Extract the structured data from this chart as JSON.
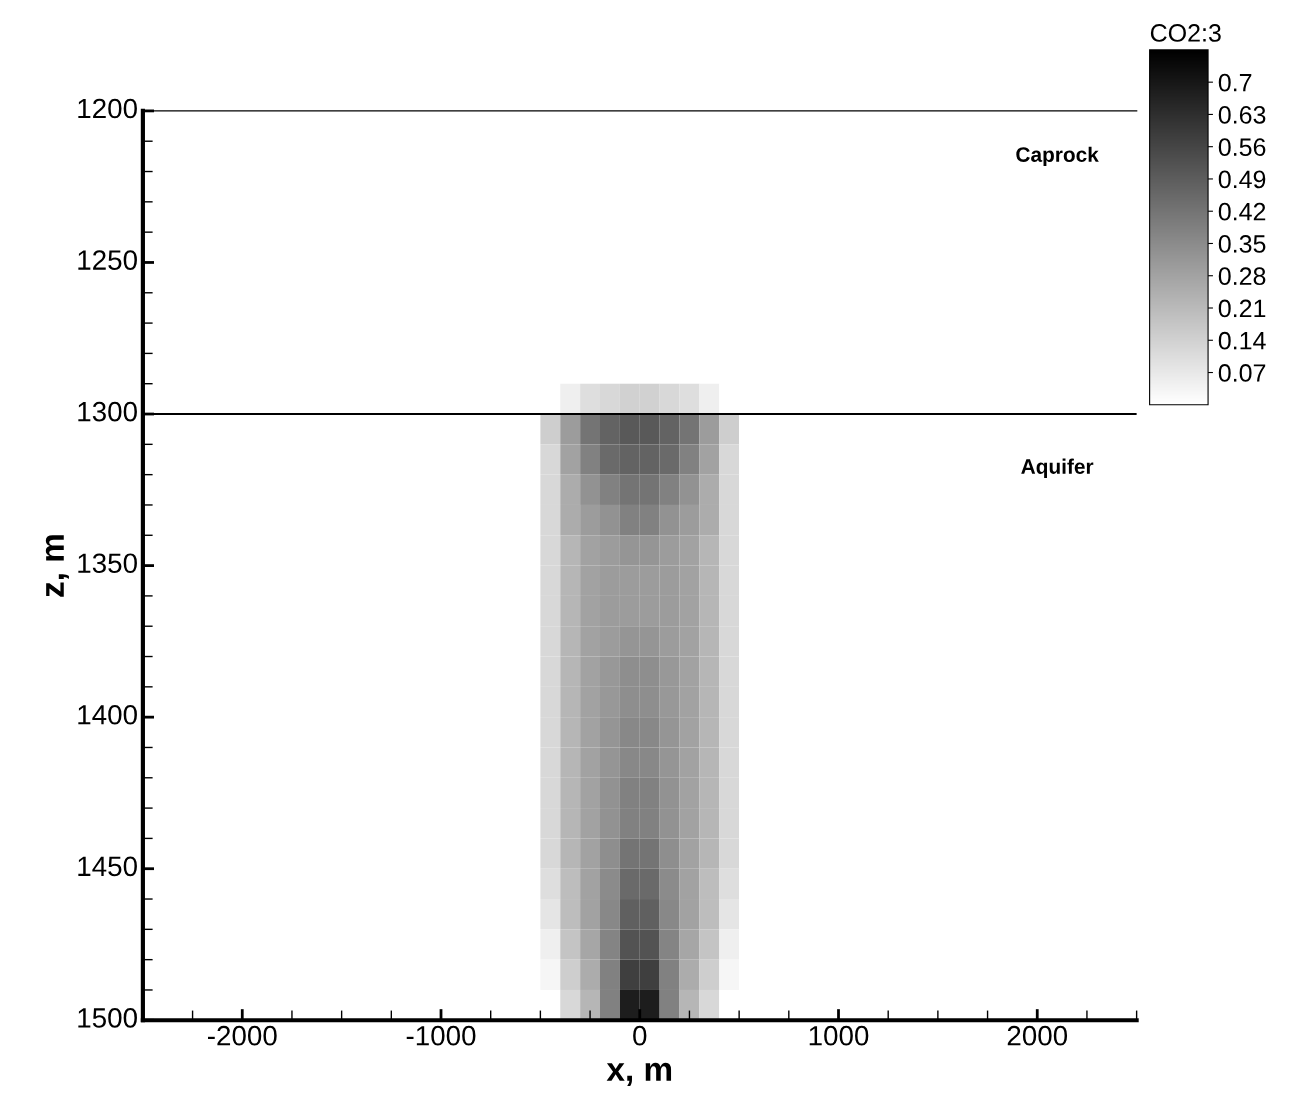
{
  "chart_data": {
    "type": "heatmap",
    "xlabel": "x, m",
    "ylabel": "z, m",
    "clabel": "CO2:3",
    "x": [
      -2450,
      -2350,
      -2250,
      -2150,
      -2050,
      -1950,
      -1850,
      -1750,
      -1650,
      -1550,
      -1450,
      -1350,
      -1250,
      -1150,
      -1050,
      -950,
      -850,
      -750,
      -650,
      -550,
      -450,
      -350,
      -250,
      -150,
      -50,
      50,
      150,
      250,
      350,
      450,
      550,
      650,
      750,
      850,
      950,
      1050,
      1150,
      1250,
      1350,
      1450,
      1550,
      1650,
      1750,
      1850,
      1950,
      2050,
      2150,
      2250,
      2350,
      2450
    ],
    "y": [
      1205,
      1215,
      1225,
      1235,
      1245,
      1255,
      1265,
      1275,
      1285,
      1295,
      1305,
      1315,
      1325,
      1335,
      1345,
      1355,
      1365,
      1375,
      1385,
      1395,
      1405,
      1415,
      1425,
      1435,
      1445,
      1455,
      1465,
      1475,
      1485,
      1495
    ],
    "cells": [
      [
        0,
        0,
        0,
        0,
        0,
        0,
        0,
        0,
        0,
        0,
        0,
        0,
        0,
        0,
        0,
        0,
        0,
        0,
        0,
        0,
        0,
        0,
        0,
        0,
        0,
        0,
        0,
        0,
        0,
        0,
        0,
        0,
        0,
        0,
        0,
        0,
        0,
        0,
        0,
        0,
        0,
        0,
        0,
        0,
        0,
        0,
        0,
        0,
        0,
        0
      ],
      [
        0,
        0,
        0,
        0,
        0,
        0,
        0,
        0,
        0,
        0,
        0,
        0,
        0,
        0,
        0,
        0,
        0,
        0,
        0,
        0,
        0,
        0,
        0,
        0,
        0,
        0,
        0,
        0,
        0,
        0,
        0,
        0,
        0,
        0,
        0,
        0,
        0,
        0,
        0,
        0,
        0,
        0,
        0,
        0,
        0,
        0,
        0,
        0,
        0,
        0
      ],
      [
        0,
        0,
        0,
        0,
        0,
        0,
        0,
        0,
        0,
        0,
        0,
        0,
        0,
        0,
        0,
        0,
        0,
        0,
        0,
        0,
        0,
        0,
        0,
        0,
        0,
        0,
        0,
        0,
        0,
        0,
        0,
        0,
        0,
        0,
        0,
        0,
        0,
        0,
        0,
        0,
        0,
        0,
        0,
        0,
        0,
        0,
        0,
        0,
        0,
        0
      ],
      [
        0,
        0,
        0,
        0,
        0,
        0,
        0,
        0,
        0,
        0,
        0,
        0,
        0,
        0,
        0,
        0,
        0,
        0,
        0,
        0,
        0,
        0,
        0,
        0,
        0,
        0,
        0,
        0,
        0,
        0,
        0,
        0,
        0,
        0,
        0,
        0,
        0,
        0,
        0,
        0,
        0,
        0,
        0,
        0,
        0,
        0,
        0,
        0,
        0,
        0
      ],
      [
        0,
        0,
        0,
        0,
        0,
        0,
        0,
        0,
        0,
        0,
        0,
        0,
        0,
        0,
        0,
        0,
        0,
        0,
        0,
        0,
        0,
        0,
        0,
        0,
        0,
        0,
        0,
        0,
        0,
        0,
        0,
        0,
        0,
        0,
        0,
        0,
        0,
        0,
        0,
        0,
        0,
        0,
        0,
        0,
        0,
        0,
        0,
        0,
        0,
        0
      ],
      [
        0,
        0,
        0,
        0,
        0,
        0,
        0,
        0,
        0,
        0,
        0,
        0,
        0,
        0,
        0,
        0,
        0,
        0,
        0,
        0,
        0,
        0,
        0,
        0,
        0,
        0,
        0,
        0,
        0,
        0,
        0,
        0,
        0,
        0,
        0,
        0,
        0,
        0,
        0,
        0,
        0,
        0,
        0,
        0,
        0,
        0,
        0,
        0,
        0,
        0
      ],
      [
        0,
        0,
        0,
        0,
        0,
        0,
        0,
        0,
        0,
        0,
        0,
        0,
        0,
        0,
        0,
        0,
        0,
        0,
        0,
        0,
        0,
        0,
        0,
        0,
        0,
        0,
        0,
        0,
        0,
        0,
        0,
        0,
        0,
        0,
        0,
        0,
        0,
        0,
        0,
        0,
        0,
        0,
        0,
        0,
        0,
        0,
        0,
        0,
        0,
        0
      ],
      [
        0,
        0,
        0,
        0,
        0,
        0,
        0,
        0,
        0,
        0,
        0,
        0,
        0,
        0,
        0,
        0,
        0,
        0,
        0,
        0,
        0,
        0,
        0,
        0,
        0,
        0,
        0,
        0,
        0,
        0,
        0,
        0,
        0,
        0,
        0,
        0,
        0,
        0,
        0,
        0,
        0,
        0,
        0,
        0,
        0,
        0,
        0,
        0,
        0,
        0
      ],
      [
        0,
        0,
        0,
        0,
        0,
        0,
        0,
        0,
        0,
        0,
        0,
        0,
        0,
        0,
        0,
        0,
        0,
        0,
        0,
        0,
        0,
        0,
        0,
        0,
        0,
        0,
        0,
        0,
        0,
        0,
        0,
        0,
        0,
        0,
        0,
        0,
        0,
        0,
        0,
        0,
        0,
        0,
        0,
        0,
        0,
        0,
        0,
        0,
        0,
        0
      ],
      [
        0,
        0,
        0,
        0,
        0,
        0,
        0,
        0,
        0,
        0,
        0,
        0,
        0,
        0,
        0,
        0,
        0,
        0,
        0,
        0,
        0,
        0.05,
        0.1,
        0.12,
        0.14,
        0.14,
        0.12,
        0.1,
        0.05,
        0,
        0,
        0,
        0,
        0,
        0,
        0,
        0,
        0,
        0,
        0,
        0,
        0,
        0,
        0,
        0,
        0,
        0,
        0,
        0,
        0
      ],
      [
        0,
        0,
        0,
        0,
        0,
        0,
        0,
        0,
        0,
        0,
        0,
        0,
        0,
        0,
        0,
        0,
        0,
        0,
        0,
        0,
        0.15,
        0.3,
        0.42,
        0.47,
        0.5,
        0.5,
        0.47,
        0.42,
        0.3,
        0.15,
        0,
        0,
        0,
        0,
        0,
        0,
        0,
        0,
        0,
        0,
        0,
        0,
        0,
        0,
        0,
        0,
        0,
        0,
        0,
        0
      ],
      [
        0,
        0,
        0,
        0,
        0,
        0,
        0,
        0,
        0,
        0,
        0,
        0,
        0,
        0,
        0,
        0,
        0,
        0,
        0,
        0,
        0.12,
        0.28,
        0.38,
        0.45,
        0.47,
        0.47,
        0.45,
        0.38,
        0.28,
        0.12,
        0,
        0,
        0,
        0,
        0,
        0,
        0,
        0,
        0,
        0,
        0,
        0,
        0,
        0,
        0,
        0,
        0,
        0,
        0,
        0
      ],
      [
        0,
        0,
        0,
        0,
        0,
        0,
        0,
        0,
        0,
        0,
        0,
        0,
        0,
        0,
        0,
        0,
        0,
        0,
        0,
        0,
        0.12,
        0.25,
        0.33,
        0.38,
        0.42,
        0.42,
        0.38,
        0.33,
        0.25,
        0.12,
        0,
        0,
        0,
        0,
        0,
        0,
        0,
        0,
        0,
        0,
        0,
        0,
        0,
        0,
        0,
        0,
        0,
        0,
        0,
        0
      ],
      [
        0,
        0,
        0,
        0,
        0,
        0,
        0,
        0,
        0,
        0,
        0,
        0,
        0,
        0,
        0,
        0,
        0,
        0,
        0,
        0,
        0.12,
        0.25,
        0.3,
        0.33,
        0.38,
        0.38,
        0.33,
        0.3,
        0.25,
        0.12,
        0,
        0,
        0,
        0,
        0,
        0,
        0,
        0,
        0,
        0,
        0,
        0,
        0,
        0,
        0,
        0,
        0,
        0,
        0,
        0
      ],
      [
        0,
        0,
        0,
        0,
        0,
        0,
        0,
        0,
        0,
        0,
        0,
        0,
        0,
        0,
        0,
        0,
        0,
        0,
        0,
        0,
        0.12,
        0.22,
        0.28,
        0.3,
        0.32,
        0.32,
        0.3,
        0.28,
        0.22,
        0.12,
        0,
        0,
        0,
        0,
        0,
        0,
        0,
        0,
        0,
        0,
        0,
        0,
        0,
        0,
        0,
        0,
        0,
        0,
        0,
        0
      ],
      [
        0,
        0,
        0,
        0,
        0,
        0,
        0,
        0,
        0,
        0,
        0,
        0,
        0,
        0,
        0,
        0,
        0,
        0,
        0,
        0,
        0.12,
        0.22,
        0.28,
        0.3,
        0.3,
        0.3,
        0.3,
        0.28,
        0.22,
        0.12,
        0,
        0,
        0,
        0,
        0,
        0,
        0,
        0,
        0,
        0,
        0,
        0,
        0,
        0,
        0,
        0,
        0,
        0,
        0,
        0
      ],
      [
        0,
        0,
        0,
        0,
        0,
        0,
        0,
        0,
        0,
        0,
        0,
        0,
        0,
        0,
        0,
        0,
        0,
        0,
        0,
        0,
        0.12,
        0.22,
        0.28,
        0.3,
        0.3,
        0.3,
        0.3,
        0.28,
        0.22,
        0.12,
        0,
        0,
        0,
        0,
        0,
        0,
        0,
        0,
        0,
        0,
        0,
        0,
        0,
        0,
        0,
        0,
        0,
        0,
        0,
        0
      ],
      [
        0,
        0,
        0,
        0,
        0,
        0,
        0,
        0,
        0,
        0,
        0,
        0,
        0,
        0,
        0,
        0,
        0,
        0,
        0,
        0,
        0.12,
        0.22,
        0.28,
        0.3,
        0.32,
        0.32,
        0.3,
        0.28,
        0.22,
        0.12,
        0,
        0,
        0,
        0,
        0,
        0,
        0,
        0,
        0,
        0,
        0,
        0,
        0,
        0,
        0,
        0,
        0,
        0,
        0,
        0
      ],
      [
        0,
        0,
        0,
        0,
        0,
        0,
        0,
        0,
        0,
        0,
        0,
        0,
        0,
        0,
        0,
        0,
        0,
        0,
        0,
        0,
        0.12,
        0.22,
        0.28,
        0.31,
        0.34,
        0.34,
        0.31,
        0.28,
        0.22,
        0.12,
        0,
        0,
        0,
        0,
        0,
        0,
        0,
        0,
        0,
        0,
        0,
        0,
        0,
        0,
        0,
        0,
        0,
        0,
        0,
        0
      ],
      [
        0,
        0,
        0,
        0,
        0,
        0,
        0,
        0,
        0,
        0,
        0,
        0,
        0,
        0,
        0,
        0,
        0,
        0,
        0,
        0,
        0.12,
        0.22,
        0.28,
        0.31,
        0.34,
        0.34,
        0.31,
        0.28,
        0.22,
        0.12,
        0,
        0,
        0,
        0,
        0,
        0,
        0,
        0,
        0,
        0,
        0,
        0,
        0,
        0,
        0,
        0,
        0,
        0,
        0,
        0
      ],
      [
        0,
        0,
        0,
        0,
        0,
        0,
        0,
        0,
        0,
        0,
        0,
        0,
        0,
        0,
        0,
        0,
        0,
        0,
        0,
        0,
        0.12,
        0.22,
        0.28,
        0.32,
        0.36,
        0.36,
        0.32,
        0.28,
        0.22,
        0.12,
        0,
        0,
        0,
        0,
        0,
        0,
        0,
        0,
        0,
        0,
        0,
        0,
        0,
        0,
        0,
        0,
        0,
        0,
        0,
        0
      ],
      [
        0,
        0,
        0,
        0,
        0,
        0,
        0,
        0,
        0,
        0,
        0,
        0,
        0,
        0,
        0,
        0,
        0,
        0,
        0,
        0,
        0.12,
        0.22,
        0.28,
        0.32,
        0.36,
        0.36,
        0.32,
        0.28,
        0.22,
        0.12,
        0,
        0,
        0,
        0,
        0,
        0,
        0,
        0,
        0,
        0,
        0,
        0,
        0,
        0,
        0,
        0,
        0,
        0,
        0,
        0
      ],
      [
        0,
        0,
        0,
        0,
        0,
        0,
        0,
        0,
        0,
        0,
        0,
        0,
        0,
        0,
        0,
        0,
        0,
        0,
        0,
        0,
        0.12,
        0.22,
        0.28,
        0.33,
        0.38,
        0.38,
        0.33,
        0.28,
        0.22,
        0.12,
        0,
        0,
        0,
        0,
        0,
        0,
        0,
        0,
        0,
        0,
        0,
        0,
        0,
        0,
        0,
        0,
        0,
        0,
        0,
        0
      ],
      [
        0,
        0,
        0,
        0,
        0,
        0,
        0,
        0,
        0,
        0,
        0,
        0,
        0,
        0,
        0,
        0,
        0,
        0,
        0,
        0,
        0.12,
        0.22,
        0.28,
        0.33,
        0.38,
        0.38,
        0.33,
        0.28,
        0.22,
        0.12,
        0,
        0,
        0,
        0,
        0,
        0,
        0,
        0,
        0,
        0,
        0,
        0,
        0,
        0,
        0,
        0,
        0,
        0,
        0,
        0
      ],
      [
        0,
        0,
        0,
        0,
        0,
        0,
        0,
        0,
        0,
        0,
        0,
        0,
        0,
        0,
        0,
        0,
        0,
        0,
        0,
        0,
        0.12,
        0.22,
        0.28,
        0.34,
        0.42,
        0.42,
        0.34,
        0.28,
        0.22,
        0.12,
        0,
        0,
        0,
        0,
        0,
        0,
        0,
        0,
        0,
        0,
        0,
        0,
        0,
        0,
        0,
        0,
        0,
        0,
        0,
        0
      ],
      [
        0,
        0,
        0,
        0,
        0,
        0,
        0,
        0,
        0,
        0,
        0,
        0,
        0,
        0,
        0,
        0,
        0,
        0,
        0,
        0,
        0.1,
        0.2,
        0.28,
        0.35,
        0.45,
        0.45,
        0.35,
        0.28,
        0.2,
        0.1,
        0,
        0,
        0,
        0,
        0,
        0,
        0,
        0,
        0,
        0,
        0,
        0,
        0,
        0,
        0,
        0,
        0,
        0,
        0,
        0
      ],
      [
        0,
        0,
        0,
        0,
        0,
        0,
        0,
        0,
        0,
        0,
        0,
        0,
        0,
        0,
        0,
        0,
        0,
        0,
        0,
        0,
        0.08,
        0.2,
        0.28,
        0.36,
        0.48,
        0.48,
        0.36,
        0.28,
        0.2,
        0.08,
        0,
        0,
        0,
        0,
        0,
        0,
        0,
        0,
        0,
        0,
        0,
        0,
        0,
        0,
        0,
        0,
        0,
        0,
        0,
        0
      ],
      [
        0,
        0,
        0,
        0,
        0,
        0,
        0,
        0,
        0,
        0,
        0,
        0,
        0,
        0,
        0,
        0,
        0,
        0,
        0,
        0,
        0.05,
        0.18,
        0.27,
        0.37,
        0.52,
        0.52,
        0.37,
        0.27,
        0.18,
        0.05,
        0,
        0,
        0,
        0,
        0,
        0,
        0,
        0,
        0,
        0,
        0,
        0,
        0,
        0,
        0,
        0,
        0,
        0,
        0,
        0
      ],
      [
        0,
        0,
        0,
        0,
        0,
        0,
        0,
        0,
        0,
        0,
        0,
        0,
        0,
        0,
        0,
        0,
        0,
        0,
        0,
        0,
        0.03,
        0.15,
        0.25,
        0.38,
        0.58,
        0.58,
        0.38,
        0.25,
        0.15,
        0.03,
        0,
        0,
        0,
        0,
        0,
        0,
        0,
        0,
        0,
        0,
        0,
        0,
        0,
        0,
        0,
        0,
        0,
        0,
        0,
        0
      ],
      [
        0,
        0,
        0,
        0,
        0,
        0,
        0,
        0,
        0,
        0,
        0,
        0,
        0,
        0,
        0,
        0,
        0,
        0,
        0,
        0,
        0,
        0.12,
        0.22,
        0.38,
        0.68,
        0.68,
        0.38,
        0.22,
        0.12,
        0,
        0,
        0,
        0,
        0,
        0,
        0,
        0,
        0,
        0,
        0,
        0,
        0,
        0,
        0,
        0,
        0,
        0,
        0,
        0,
        0
      ]
    ],
    "clim": [
      0,
      0.77
    ],
    "cticks": [
      0.07,
      0.14,
      0.21,
      0.28,
      0.35,
      0.42,
      0.49,
      0.56,
      0.63,
      0.7
    ],
    "xlim": [
      -2500,
      2500
    ],
    "ylim": [
      1500,
      1200
    ],
    "xticks": [
      -2000,
      -1000,
      0,
      1000,
      2000
    ],
    "yticks": [
      1200,
      1250,
      1300,
      1350,
      1400,
      1450,
      1500
    ],
    "ref_lines": [
      {
        "axis": "y",
        "value": 1300,
        "color": "#000000"
      }
    ],
    "annotations": [
      "Caprock",
      "Aquifer"
    ],
    "grid": false
  }
}
